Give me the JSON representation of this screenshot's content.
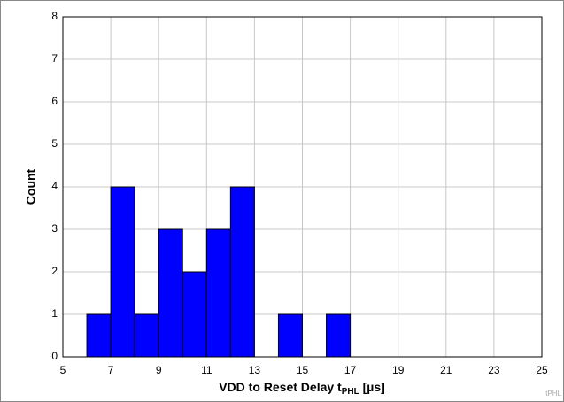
{
  "chart_data": {
    "type": "histogram",
    "ylabel": "Count",
    "xlabel": [
      "VDD to Reset Delay t",
      "PHL",
      " [µs]"
    ],
    "watermark": "tPHL",
    "bins": [
      6,
      7,
      8,
      9,
      10,
      11,
      12,
      13,
      14,
      15,
      16,
      17
    ],
    "counts": [
      1,
      4,
      1,
      3,
      2,
      3,
      4,
      0,
      1,
      0,
      1
    ],
    "color": "#0000ff",
    "xlim": [
      5,
      25
    ],
    "xticks": [
      5,
      7,
      9,
      11,
      13,
      15,
      17,
      19,
      21,
      23,
      25
    ],
    "ylim": [
      0,
      8
    ],
    "yticks": [
      0,
      1,
      2,
      3,
      4,
      5,
      6,
      7,
      8
    ],
    "grid": true
  }
}
